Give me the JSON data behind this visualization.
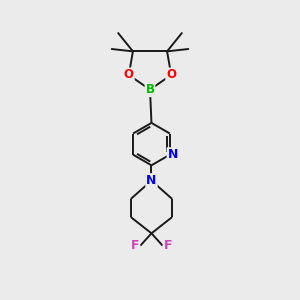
{
  "background_color": "#ebebeb",
  "bond_color": "#1a1a1a",
  "atom_colors": {
    "B": "#00bb00",
    "O": "#ff0000",
    "N": "#0000ee",
    "F": "#cc44bb",
    "C": "#1a1a1a"
  },
  "bond_width": 1.4,
  "figsize": [
    3.0,
    3.0
  ],
  "dpi": 100,
  "xlim": [
    0,
    10
  ],
  "ylim": [
    0,
    10
  ]
}
